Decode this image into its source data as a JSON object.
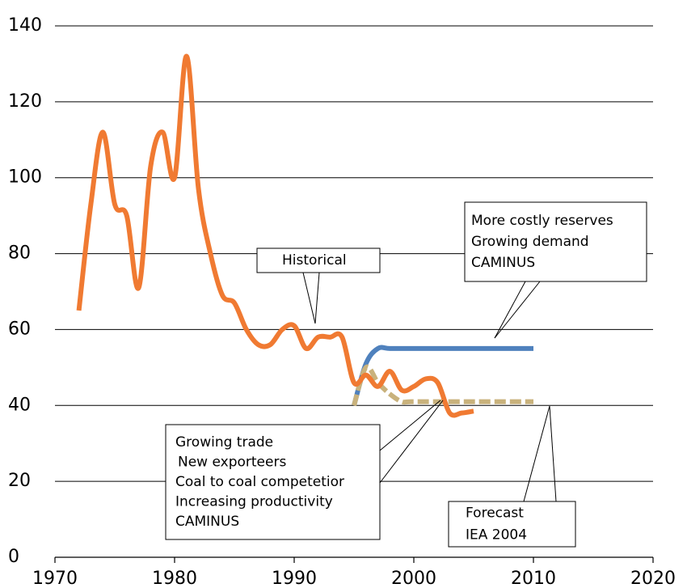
{
  "chart_data": {
    "type": "line",
    "xlim": [
      1970,
      2020
    ],
    "xticks": [
      1970,
      1980,
      1990,
      2000,
      2010,
      2020
    ],
    "ylim": [
      0,
      140
    ],
    "yticks": [
      0,
      20,
      40,
      60,
      80,
      100,
      120,
      140
    ],
    "grid": true,
    "series": [
      {
        "name": "Historical",
        "color": "#f07a32",
        "dashed": false,
        "x": [
          1972,
          1973,
          1974,
          1975,
          1976,
          1977,
          1978,
          1979,
          1980,
          1981,
          1982,
          1983,
          1984,
          1985,
          1986,
          1987,
          1988,
          1989,
          1990,
          1991,
          1992,
          1993,
          1994,
          1995,
          1996,
          1997,
          1998,
          1999,
          2000,
          2001,
          2002,
          2003,
          2004,
          2005
        ],
        "values": [
          65,
          93,
          112,
          93,
          90,
          71,
          103,
          112,
          100,
          132,
          97,
          80,
          69,
          67,
          60,
          56,
          56,
          60,
          61,
          55,
          58,
          58,
          58,
          46,
          48,
          45,
          49,
          44,
          45,
          47,
          46,
          38,
          38,
          38.5
        ]
      },
      {
        "name": "CAMINUS",
        "color": "#4f81bd",
        "dashed": false,
        "x": [
          1995,
          1996,
          1997,
          1998,
          2000,
          2005,
          2010
        ],
        "values": [
          40,
          51,
          55,
          55,
          55,
          55,
          55
        ]
      },
      {
        "name": "IEA 2004",
        "color": "#c9b27c",
        "dashed": true,
        "x": [
          1995,
          1996,
          1997,
          1998,
          1999,
          2000,
          2005,
          2010
        ],
        "values": [
          40,
          50,
          46,
          43,
          41,
          41,
          41,
          41
        ]
      }
    ],
    "annotations": [
      {
        "lines": [
          "Historical"
        ]
      },
      {
        "lines": [
          "More costly reserves",
          "Growing demand",
          "CAMINUS"
        ]
      },
      {
        "lines": [
          "Growing trade",
          "New exporteers",
          "Coal to coal competetior",
          "Increasing productivity",
          "CAMINUS"
        ]
      },
      {
        "lines": [
          "Forecast",
          "IEA 2004"
        ]
      }
    ]
  }
}
